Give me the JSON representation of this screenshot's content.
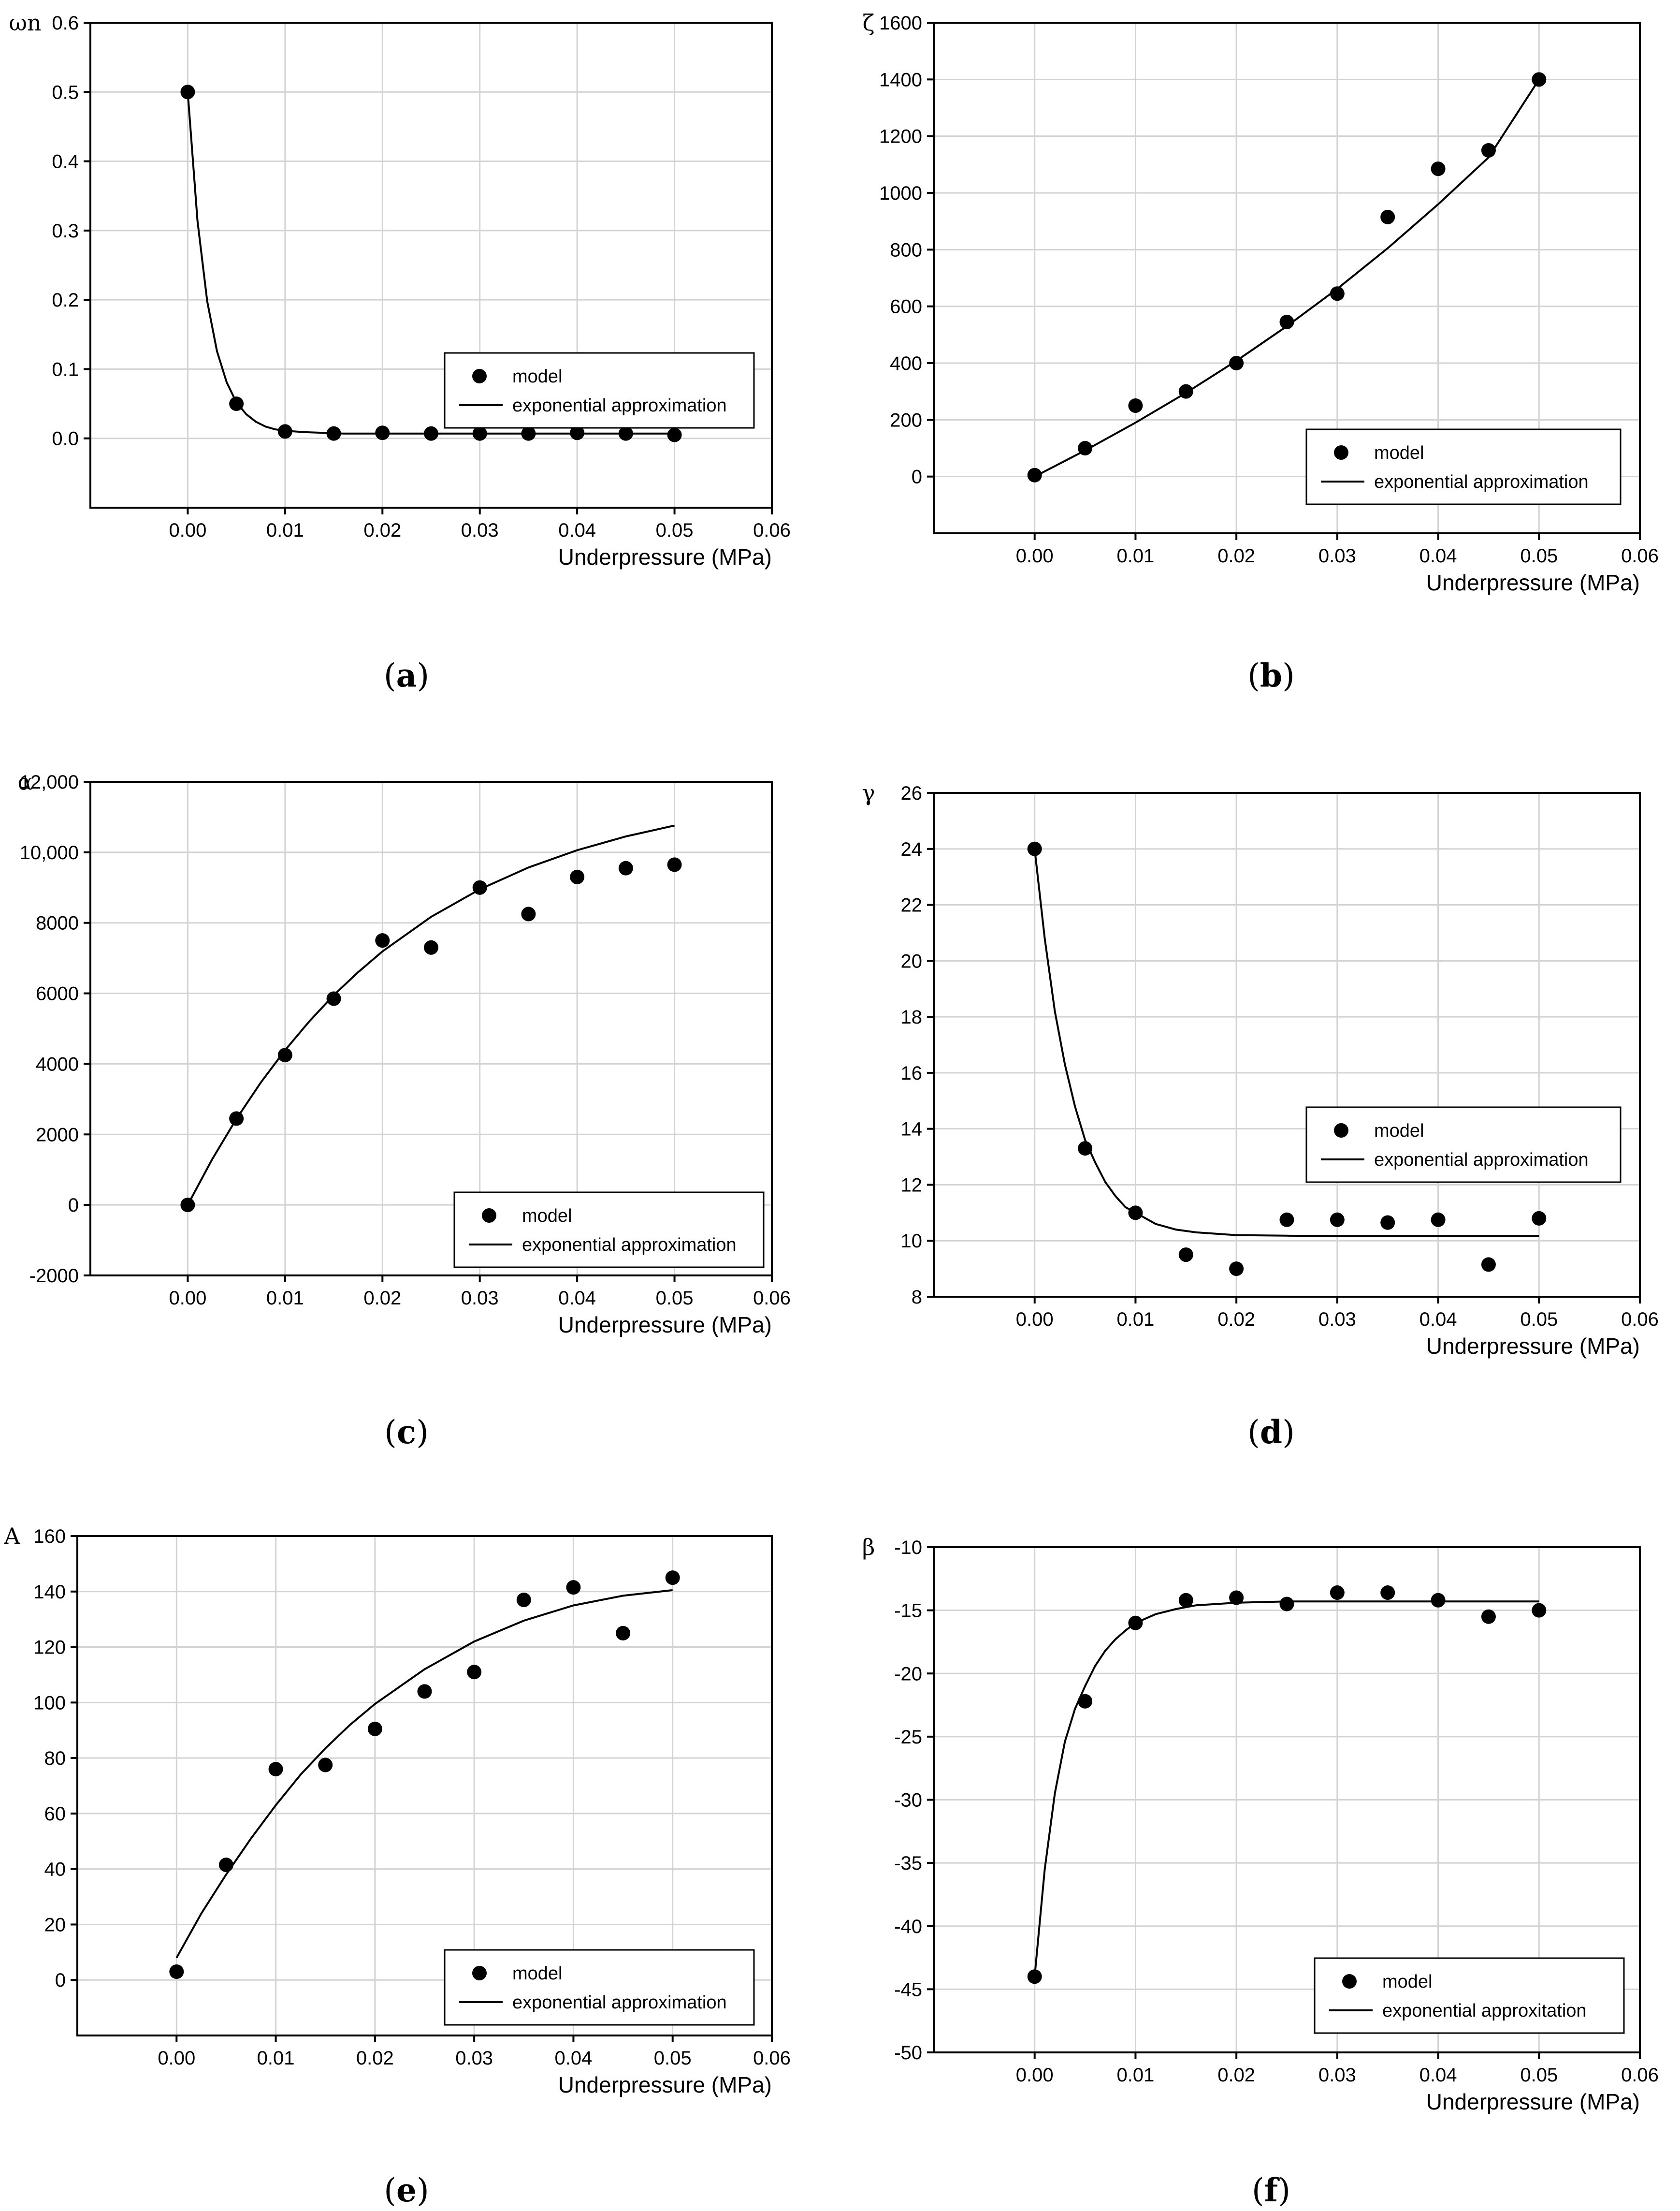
{
  "chart_data": [
    {
      "type": "scatter",
      "caption_letter": "a",
      "ylabel": "ωn",
      "xlabel": "Underpressure (MPa)",
      "xlim": [
        -0.01,
        0.06
      ],
      "ylim": [
        -0.1,
        0.6
      ],
      "xticks": [
        0.0,
        0.01,
        0.02,
        0.03,
        0.04,
        0.05,
        0.06
      ],
      "xtick_labels": [
        "0.00",
        "0.01",
        "0.02",
        "0.03",
        "0.04",
        "0.05",
        "0.06"
      ],
      "yticks": [
        0.0,
        0.1,
        0.2,
        0.3,
        0.4,
        0.5,
        0.6
      ],
      "ytick_labels": [
        "0.0",
        "0.1",
        "0.2",
        "0.3",
        "0.4",
        "0.5",
        "0.6"
      ],
      "series": [
        {
          "name": "model",
          "kind": "points",
          "x": [
            0,
            0.005,
            0.01,
            0.015,
            0.02,
            0.025,
            0.03,
            0.035,
            0.04,
            0.045,
            0.05
          ],
          "y": [
            0.5,
            0.05,
            0.01,
            0.007,
            0.008,
            0.007,
            0.007,
            0.007,
            0.008,
            0.007,
            0.005
          ]
        },
        {
          "name": "exponential approximation",
          "kind": "line",
          "x": [
            0,
            0.001,
            0.002,
            0.003,
            0.004,
            0.005,
            0.006,
            0.007,
            0.008,
            0.009,
            0.01,
            0.012,
            0.014,
            0.016,
            0.02,
            0.025,
            0.03,
            0.035,
            0.04,
            0.045,
            0.05
          ],
          "y": [
            0.5,
            0.314,
            0.198,
            0.126,
            0.081,
            0.052,
            0.035,
            0.024,
            0.017,
            0.013,
            0.011,
            0.009,
            0.008,
            0.007,
            0.007,
            0.007,
            0.007,
            0.007,
            0.007,
            0.007,
            0.007
          ]
        }
      ],
      "legend": [
        "model",
        "exponential approximation"
      ],
      "legend_position": "middle-right"
    },
    {
      "type": "scatter",
      "caption_letter": "b",
      "ylabel": "ζ",
      "xlabel": "Underpressure (MPa)",
      "xlim": [
        -0.01,
        0.06
      ],
      "ylim": [
        -200,
        1600
      ],
      "xticks": [
        0.0,
        0.01,
        0.02,
        0.03,
        0.04,
        0.05,
        0.06
      ],
      "xtick_labels": [
        "0.00",
        "0.01",
        "0.02",
        "0.03",
        "0.04",
        "0.05",
        "0.06"
      ],
      "yticks": [
        0,
        200,
        400,
        600,
        800,
        1000,
        1200,
        1400,
        1600
      ],
      "ytick_labels": [
        "0",
        "200",
        "400",
        "600",
        "800",
        "1000",
        "1200",
        "1400",
        "1600"
      ],
      "series": [
        {
          "name": "model",
          "kind": "points",
          "x": [
            0,
            0.005,
            0.01,
            0.015,
            0.02,
            0.025,
            0.03,
            0.035,
            0.04,
            0.045,
            0.05
          ],
          "y": [
            5,
            100,
            250,
            300,
            400,
            545,
            645,
            915,
            1085,
            1150,
            1400
          ]
        },
        {
          "name": "exponential approximation",
          "kind": "line",
          "x": [
            0,
            0.005,
            0.01,
            0.015,
            0.02,
            0.025,
            0.03,
            0.035,
            0.04,
            0.045,
            0.05
          ],
          "y": [
            0,
            92,
            190,
            295,
            408,
            530,
            662,
            805,
            960,
            1125,
            1400
          ]
        },
        {
          "name": "",
          "kind": "hidden",
          "x": [],
          "y": []
        }
      ],
      "legend": [
        "model",
        "exponential approximation"
      ],
      "legend_position": "bottom-right"
    },
    {
      "type": "scatter",
      "caption_letter": "c",
      "ylabel": "α",
      "xlabel": "Underpressure (MPa)",
      "xlim": [
        -0.01,
        0.06
      ],
      "ylim": [
        -2000,
        12000
      ],
      "xticks": [
        0.0,
        0.01,
        0.02,
        0.03,
        0.04,
        0.05,
        0.06
      ],
      "xtick_labels": [
        "0.00",
        "0.01",
        "0.02",
        "0.03",
        "0.04",
        "0.05",
        "0.06"
      ],
      "yticks": [
        -2000,
        0,
        2000,
        4000,
        6000,
        8000,
        10000,
        12000
      ],
      "ytick_labels": [
        "-2000",
        "0",
        "2000",
        "4000",
        "6000",
        "8000",
        "10,000",
        "12,000"
      ],
      "series": [
        {
          "name": "model",
          "kind": "points",
          "x": [
            0,
            0.005,
            0.01,
            0.015,
            0.02,
            0.025,
            0.03,
            0.035,
            0.04,
            0.045,
            0.05
          ],
          "y": [
            0,
            2450,
            4250,
            5850,
            7500,
            7300,
            9000,
            8250,
            9300,
            9550,
            9650
          ]
        },
        {
          "name": "exponential approximation",
          "kind": "line",
          "x": [
            0,
            0.0025,
            0.005,
            0.0075,
            0.01,
            0.0125,
            0.015,
            0.0175,
            0.02,
            0.025,
            0.03,
            0.035,
            0.04,
            0.045,
            0.05
          ],
          "y": [
            0,
            1290,
            2440,
            3470,
            4390,
            5210,
            5950,
            6600,
            7190,
            8170,
            8950,
            9570,
            10060,
            10450,
            10760
          ]
        }
      ],
      "legend": [
        "model",
        "exponential approximation"
      ],
      "legend_position": "bottom-right"
    },
    {
      "type": "scatter",
      "caption_letter": "d",
      "ylabel": "γ",
      "xlabel": "Underpressure (MPa)",
      "xlim": [
        -0.01,
        0.06
      ],
      "ylim": [
        8,
        26
      ],
      "xticks": [
        0.0,
        0.01,
        0.02,
        0.03,
        0.04,
        0.05,
        0.06
      ],
      "xtick_labels": [
        "0.00",
        "0.01",
        "0.02",
        "0.03",
        "0.04",
        "0.05",
        "0.06"
      ],
      "yticks": [
        8,
        10,
        12,
        14,
        16,
        18,
        20,
        22,
        24,
        26
      ],
      "ytick_labels": [
        "8",
        "10",
        "12",
        "14",
        "16",
        "18",
        "20",
        "22",
        "24",
        "26"
      ],
      "series": [
        {
          "name": "model",
          "kind": "points",
          "x": [
            0,
            0.005,
            0.01,
            0.015,
            0.02,
            0.025,
            0.03,
            0.035,
            0.04,
            0.045,
            0.05
          ],
          "y": [
            24,
            13.3,
            11,
            9.5,
            9.0,
            10.75,
            10.75,
            10.65,
            10.75,
            9.15,
            10.8
          ]
        },
        {
          "name": "exponential approximation",
          "kind": "line",
          "x": [
            0,
            0.001,
            0.002,
            0.003,
            0.004,
            0.005,
            0.006,
            0.007,
            0.008,
            0.009,
            0.01,
            0.012,
            0.014,
            0.016,
            0.018,
            0.02,
            0.025,
            0.03,
            0.035,
            0.04,
            0.045,
            0.05
          ],
          "y": [
            24,
            20.8,
            18.2,
            16.3,
            14.8,
            13.6,
            12.8,
            12.1,
            11.6,
            11.2,
            11.0,
            10.6,
            10.4,
            10.3,
            10.25,
            10.2,
            10.18,
            10.17,
            10.17,
            10.17,
            10.17,
            10.17
          ]
        }
      ],
      "legend": [
        "model",
        "exponential approximation"
      ],
      "legend_position": "middle-right"
    },
    {
      "type": "scatter",
      "caption_letter": "e",
      "ylabel": "A",
      "xlabel": "Underpressure (MPa)",
      "xlim": [
        -0.01,
        0.06
      ],
      "ylim": [
        -20,
        160
      ],
      "xticks": [
        0.0,
        0.01,
        0.02,
        0.03,
        0.04,
        0.05,
        0.06
      ],
      "xtick_labels": [
        "0.00",
        "0.01",
        "0.02",
        "0.03",
        "0.04",
        "0.05",
        "0.06"
      ],
      "yticks": [
        0,
        20,
        40,
        60,
        80,
        100,
        120,
        140,
        160
      ],
      "ytick_labels": [
        "0",
        "20",
        "40",
        "60",
        "80",
        "100",
        "120",
        "140",
        "160"
      ],
      "series": [
        {
          "name": "model",
          "kind": "points",
          "x": [
            0,
            0.005,
            0.01,
            0.015,
            0.02,
            0.025,
            0.03,
            0.035,
            0.04,
            0.045,
            0.05
          ],
          "y": [
            3,
            41.5,
            76,
            77.5,
            90.5,
            104,
            111,
            137,
            141.5,
            125,
            145
          ]
        },
        {
          "name": "exponential approximation",
          "kind": "line",
          "x": [
            0,
            0.0025,
            0.005,
            0.0075,
            0.01,
            0.0125,
            0.015,
            0.0175,
            0.02,
            0.025,
            0.03,
            0.035,
            0.04,
            0.045,
            0.05
          ],
          "y": [
            8,
            24,
            38,
            51,
            63,
            74,
            83.5,
            92,
            99.5,
            112,
            122,
            129.5,
            135,
            138.5,
            140.5
          ]
        }
      ],
      "legend": [
        "model",
        "exponential approximation"
      ],
      "legend_position": "bottom-right"
    },
    {
      "type": "scatter",
      "caption_letter": "f",
      "ylabel": "β",
      "xlabel": "Underpressure (MPa)",
      "xlim": [
        -0.01,
        0.06
      ],
      "ylim": [
        -50,
        -10
      ],
      "xticks": [
        0.0,
        0.01,
        0.02,
        0.03,
        0.04,
        0.05,
        0.06
      ],
      "xtick_labels": [
        "0.00",
        "0.01",
        "0.02",
        "0.03",
        "0.04",
        "0.05",
        "0.06"
      ],
      "yticks": [
        -50,
        -45,
        -40,
        -35,
        -30,
        -25,
        -20,
        -15,
        -10
      ],
      "ytick_labels": [
        "-50",
        "-45",
        "-40",
        "-35",
        "-30",
        "-25",
        "-20",
        "-15",
        "-10"
      ],
      "series": [
        {
          "name": "model",
          "kind": "points",
          "x": [
            0,
            0.005,
            0.01,
            0.015,
            0.02,
            0.025,
            0.03,
            0.035,
            0.04,
            0.045,
            0.05
          ],
          "y": [
            -44,
            -22.2,
            -16,
            -14.2,
            -14,
            -14.5,
            -13.6,
            -13.6,
            -14.2,
            -15.5,
            -15
          ]
        },
        {
          "name": "exponential approximation",
          "kind": "line",
          "x": [
            0,
            0.001,
            0.002,
            0.003,
            0.004,
            0.005,
            0.006,
            0.007,
            0.008,
            0.009,
            0.01,
            0.012,
            0.014,
            0.016,
            0.02,
            0.025,
            0.03,
            0.035,
            0.04,
            0.045,
            0.05
          ],
          "y": [
            -44,
            -35.5,
            -29.5,
            -25.4,
            -22.8,
            -21.0,
            -19.4,
            -18.2,
            -17.3,
            -16.6,
            -16.0,
            -15.3,
            -14.9,
            -14.6,
            -14.4,
            -14.3,
            -14.3,
            -14.3,
            -14.3,
            -14.3,
            -14.3
          ]
        }
      ],
      "legend": [
        "model",
        "exponential approxitation"
      ],
      "legend_position": "bottom-right"
    }
  ]
}
